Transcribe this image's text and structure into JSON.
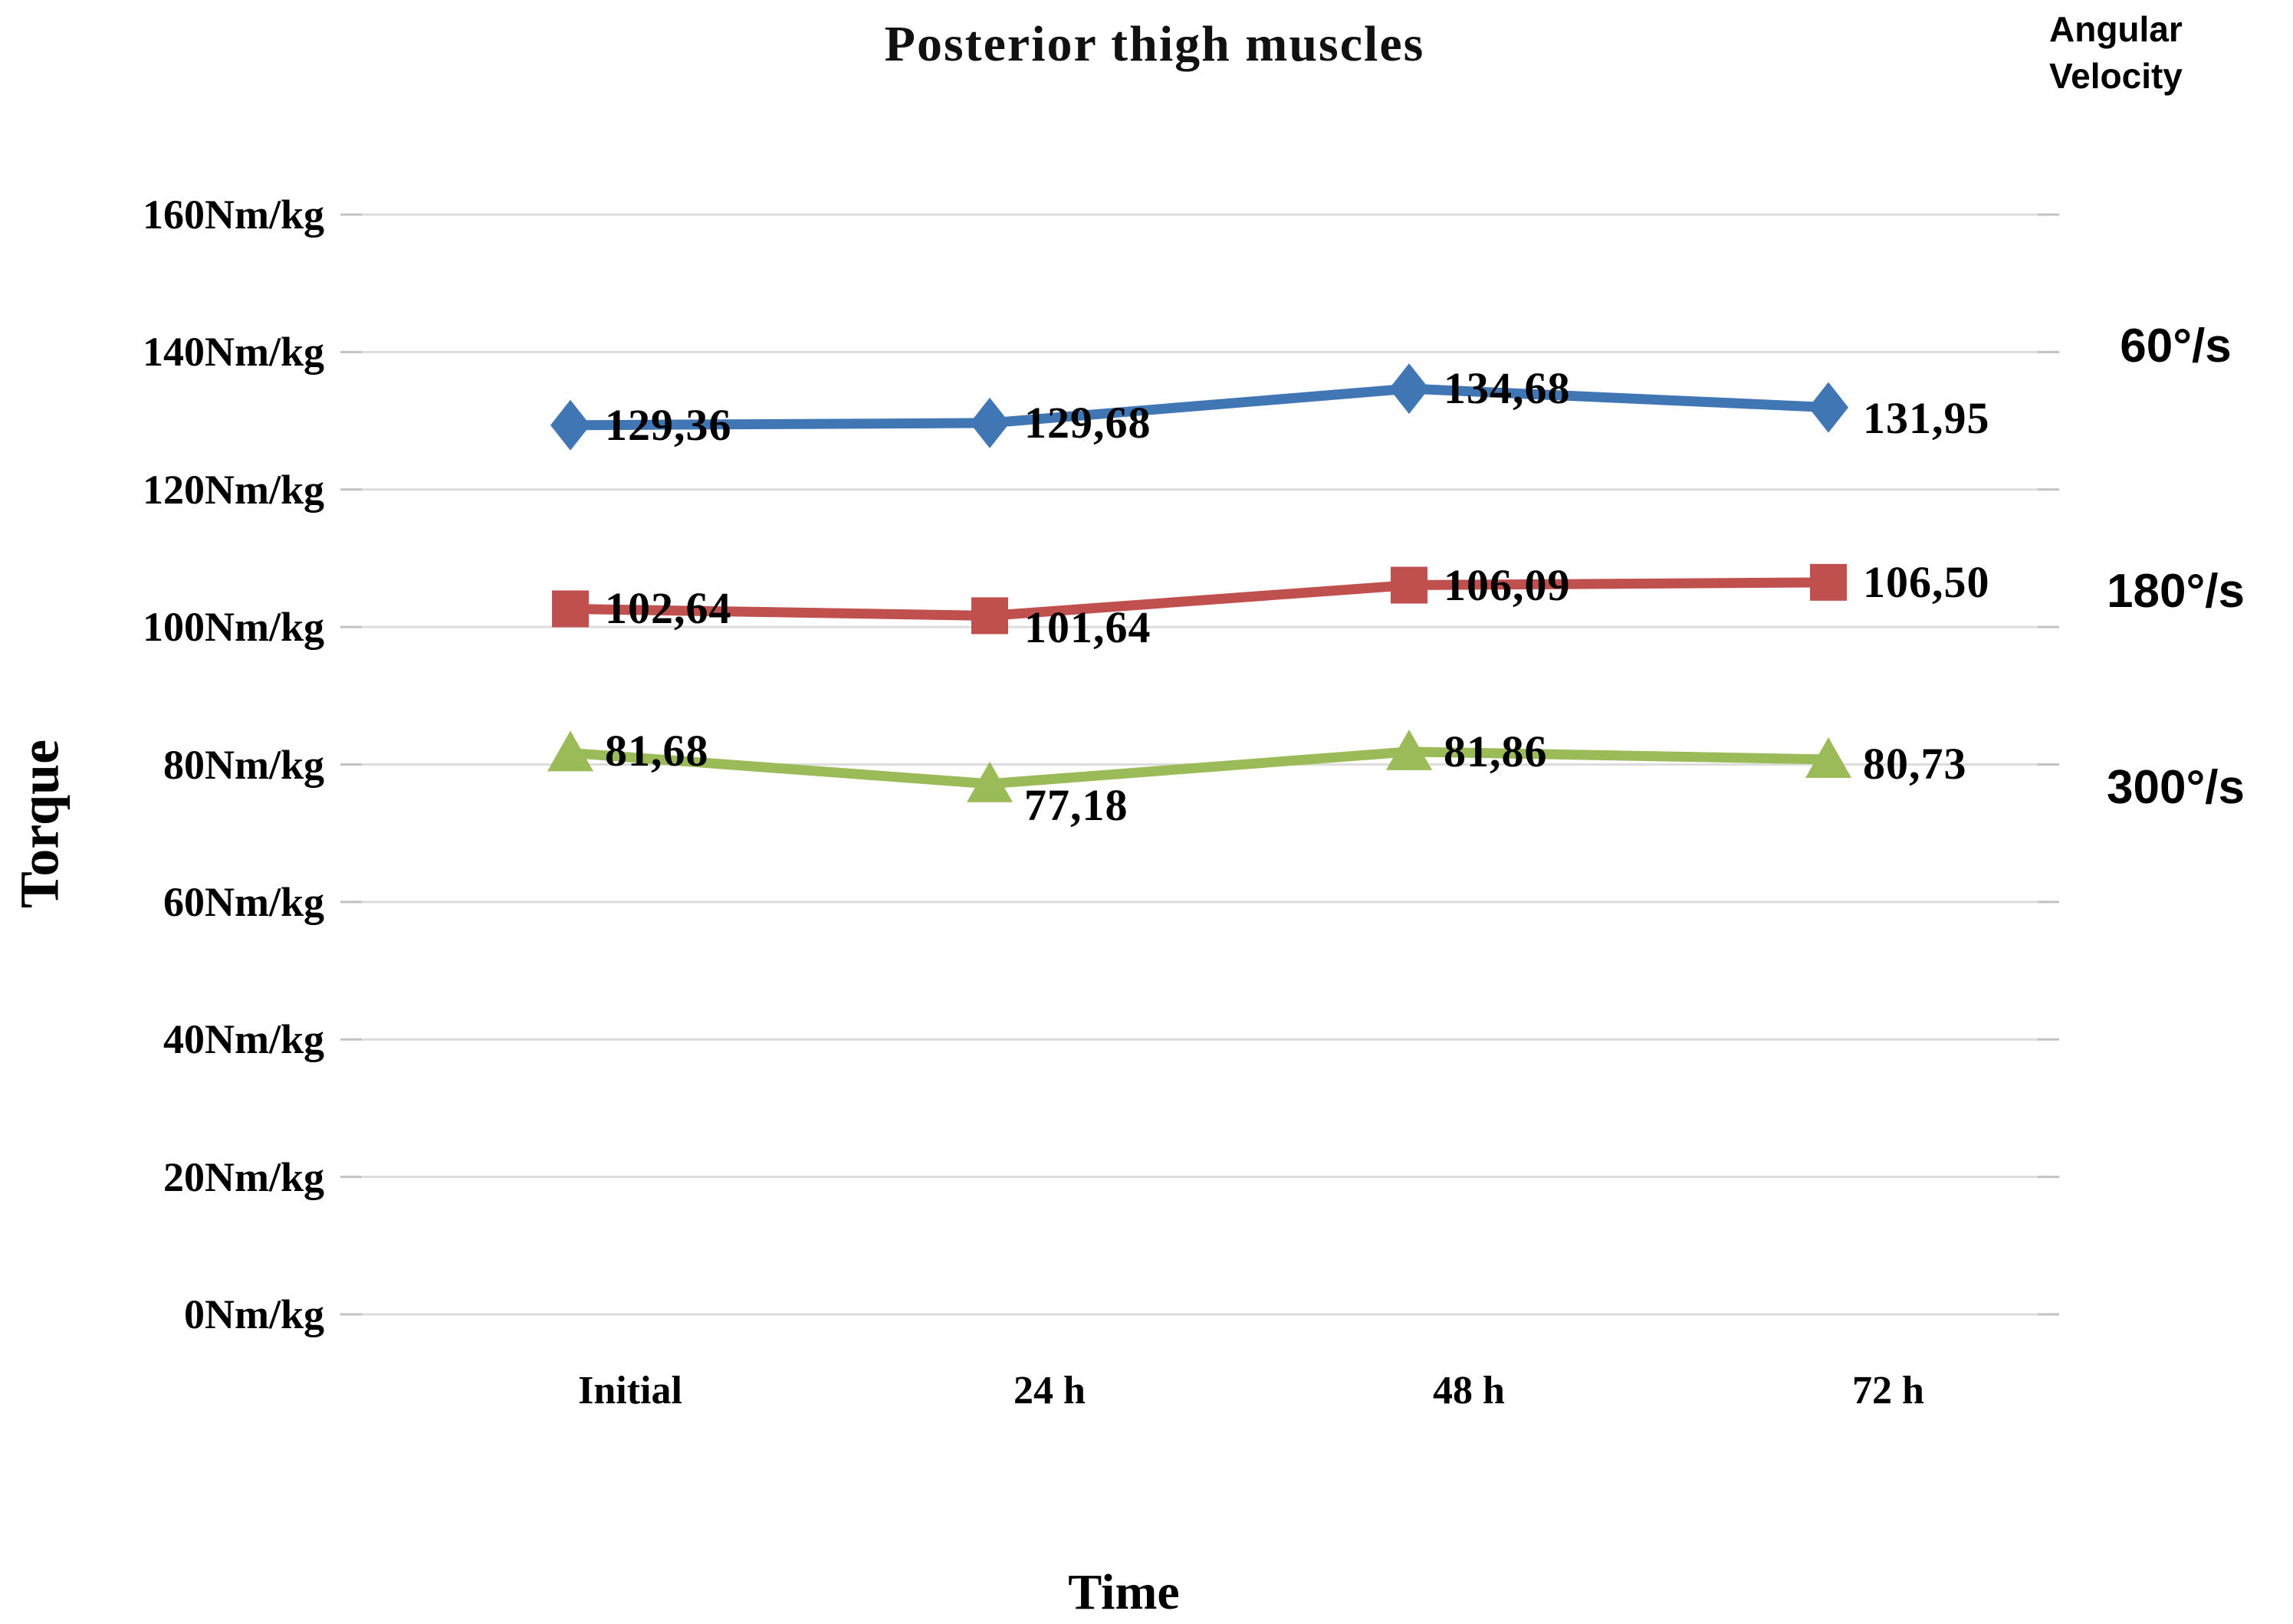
{
  "title": "Posterior thigh muscles",
  "axis_titles": {
    "y": "Torque",
    "x": "Time"
  },
  "legend": {
    "header": "Angular Velocity",
    "position": "right",
    "items": [
      {
        "label": "60°/s"
      },
      {
        "label": "180°/s"
      },
      {
        "label": "300°/s"
      }
    ]
  },
  "colors": {
    "series_blue": "#4076B4",
    "series_red": "#C0504D",
    "series_green": "#9BBB59",
    "gridline": "#DCDCDC",
    "tick": "#C2C2C2",
    "text": "#000000"
  },
  "chart_data": {
    "type": "line",
    "title": "Posterior thigh muscles",
    "xlabel": "Time",
    "ylabel": "Torque",
    "categories": [
      "Initial",
      "24 h",
      "48 h",
      "72 h"
    ],
    "y_tick_labels": [
      "0Nm/kg",
      "20Nm/kg",
      "40Nm/kg",
      "60Nm/kg",
      "80Nm/kg",
      "100Nm/kg",
      "120Nm/kg",
      "140Nm/kg",
      "160Nm/kg"
    ],
    "ylim": [
      0,
      160
    ],
    "y_tick_step": 20,
    "grid": true,
    "legend_position": "right",
    "series": [
      {
        "name": "60°/s",
        "marker": "diamond",
        "color": "#4076B4",
        "values": [
          129.36,
          129.68,
          134.68,
          131.95
        ],
        "labels": [
          "129,36",
          "129,68",
          "134,68",
          "131,95"
        ]
      },
      {
        "name": "180°/s",
        "marker": "square",
        "color": "#C0504D",
        "values": [
          102.64,
          101.64,
          106.09,
          106.5
        ],
        "labels": [
          "102,64",
          "101,64",
          "106,09",
          "106,50"
        ]
      },
      {
        "name": "300°/s",
        "marker": "triangle",
        "color": "#9BBB59",
        "values": [
          81.68,
          77.18,
          81.86,
          80.73
        ],
        "labels": [
          "81,68",
          "77,18",
          "81,86",
          "80,73"
        ]
      }
    ]
  }
}
